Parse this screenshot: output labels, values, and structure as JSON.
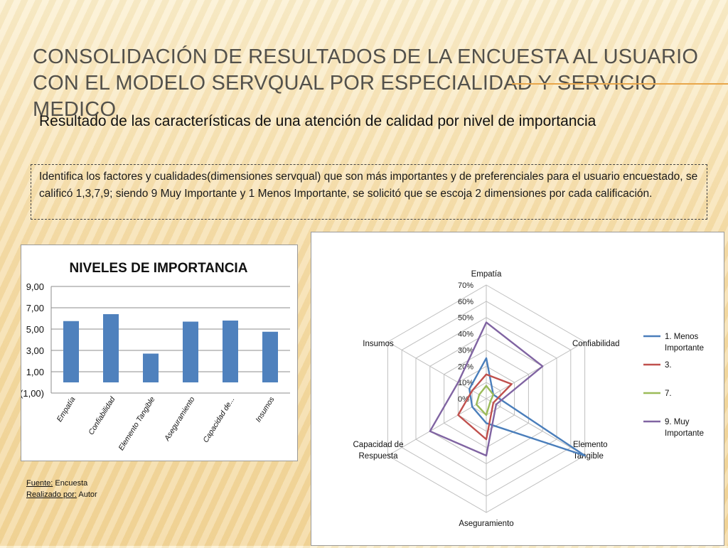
{
  "slide": {
    "title": "CONSOLIDACIÓN DE RESULTADOS DE LA ENCUESTA AL USUARIO CON EL MODELO SERVQUAL POR ESPECIALIDAD Y SERVICIO MEDICO",
    "subtitle": "Resultado de las características de una atención de calidad por nivel de importancia",
    "description": "Identifica los factores y cualidades(dimensiones servqual) que son más importantes y de preferenciales para el usuario encuestado, se calificó 1,3,7,9; siendo 9 Muy Importante y 1 Menos Importante, se solicitó que se escoja 2 dimensiones por cada calificación.",
    "source_label": "Fuente:",
    "source_value": "Encuesta",
    "author_label": "Realizado por:",
    "author_value": "Autor",
    "accent_color": "#e8a64a"
  },
  "chart_data": [
    {
      "type": "bar",
      "title": "NIVELES DE IMPORTANCIA",
      "categories": [
        "Empatía",
        "Confiabilidad",
        "Elemento Tangible",
        "Aseguramiento",
        "Capacidad de...",
        "Insumos"
      ],
      "values": [
        5.75,
        6.4,
        2.7,
        5.7,
        5.8,
        4.75
      ],
      "ytick_labels": [
        "(1,00)",
        "1,00",
        "3,00",
        "5,00",
        "7,00",
        "9,00"
      ],
      "yticks": [
        -1,
        1,
        3,
        5,
        7,
        9
      ],
      "ylim": [
        -1,
        9
      ],
      "grid": true,
      "color": "#4f81bd"
    },
    {
      "type": "radar",
      "axes": [
        "Empatía",
        "Confiabilidad",
        "Elemento Tangible",
        "Aseguramiento",
        "Capacidad de Respuesta",
        "Insumos"
      ],
      "rtick_labels": [
        "0%",
        "10%",
        "20%",
        "30%",
        "40%",
        "50%",
        "60%",
        "70%"
      ],
      "rmax": 70,
      "series": [
        {
          "name": "1. Menos Importante",
          "color": "#4a7ebb",
          "values": [
            25,
            5,
            70,
            15,
            10,
            12
          ]
        },
        {
          "name": "3.",
          "color": "#c0504d",
          "values": [
            15,
            18,
            5,
            25,
            20,
            10
          ]
        },
        {
          "name": "7.",
          "color": "#9bbb59",
          "values": [
            8,
            5,
            3,
            10,
            7,
            5
          ]
        },
        {
          "name": "9. Muy Importante",
          "color": "#8064a2",
          "values": [
            47,
            40,
            7,
            35,
            40,
            20
          ]
        }
      ],
      "legend_position": "right"
    }
  ]
}
